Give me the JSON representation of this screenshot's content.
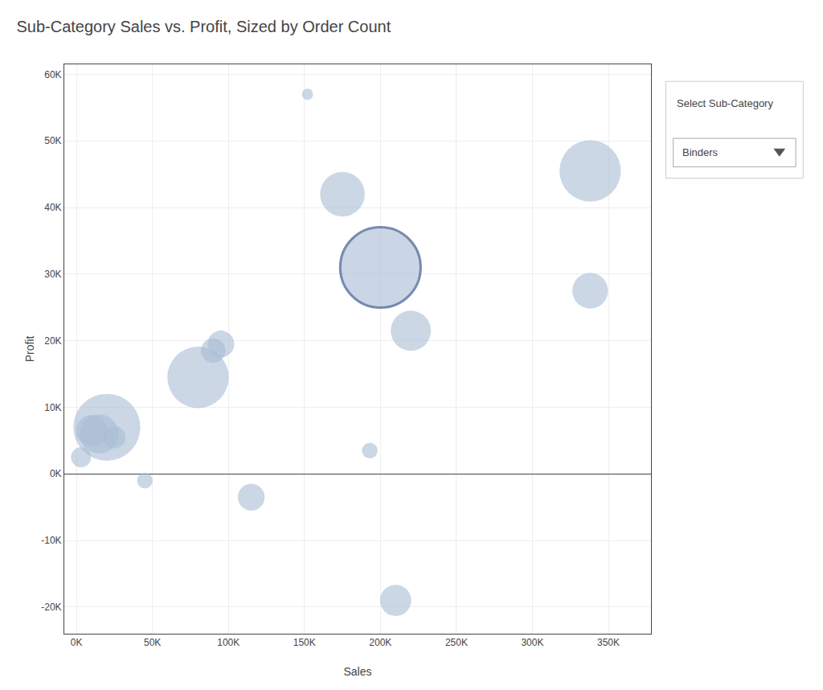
{
  "chart_data": {
    "type": "scatter",
    "title": "Sub-Category Sales vs. Profit, Sized by Order Count",
    "x_label": "Sales",
    "y_label": "Profit",
    "x": [
      3000,
      10000,
      15000,
      20000,
      25000,
      45000,
      80000,
      90000,
      95000,
      115000,
      152000,
      175000,
      193000,
      200000,
      220000,
      210000,
      338000,
      338000
    ],
    "values": [
      2500,
      6500,
      6000,
      7000,
      5500,
      -1000,
      14500,
      18500,
      19500,
      -3500,
      57000,
      42000,
      3500,
      31000,
      21500,
      -19000,
      45500,
      27500
    ],
    "sizes": [
      18,
      28,
      35,
      60,
      20,
      14,
      55,
      22,
      24,
      24,
      10,
      40,
      14,
      72,
      36,
      28,
      55,
      32
    ],
    "highlighted": [
      false,
      false,
      false,
      false,
      false,
      false,
      false,
      false,
      false,
      false,
      false,
      false,
      false,
      true,
      false,
      false,
      false,
      false
    ],
    "color": "#a8bcd4",
    "xlim": [
      -8000,
      378000
    ],
    "ylim": [
      -24000,
      61500
    ],
    "xticks": [
      {
        "value": 0,
        "label": "0K"
      },
      {
        "value": 50000,
        "label": "50K"
      },
      {
        "value": 100000,
        "label": "100K"
      },
      {
        "value": 150000,
        "label": "150K"
      },
      {
        "value": 200000,
        "label": "200K"
      },
      {
        "value": 250000,
        "label": "250K"
      },
      {
        "value": 300000,
        "label": "300K"
      },
      {
        "value": 350000,
        "label": "350K"
      }
    ],
    "yticks": [
      {
        "value": -20000,
        "label": "-20K"
      },
      {
        "value": -10000,
        "label": "-10K"
      },
      {
        "value": 0,
        "label": "0K"
      },
      {
        "value": 10000,
        "label": "10K"
      },
      {
        "value": 20000,
        "label": "20K"
      },
      {
        "value": 30000,
        "label": "30K"
      },
      {
        "value": 40000,
        "label": "40K"
      },
      {
        "value": 50000,
        "label": "50K"
      },
      {
        "value": 60000,
        "label": "60K"
      }
    ],
    "grid": true,
    "annotations": [
      "Select Sub-Category",
      "Binders"
    ]
  }
}
